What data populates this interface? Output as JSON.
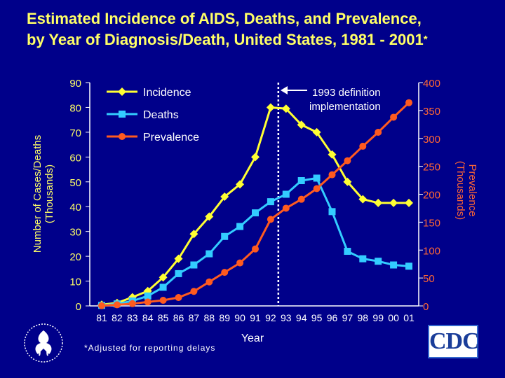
{
  "title": {
    "line1": "Estimated Incidence of AIDS, Deaths, and Prevalence,",
    "line2": "by Year of Diagnosis/Death, United States, 1981 - 2001",
    "asterisk": "*"
  },
  "footnote": "*Adjusted for reporting delays",
  "logos": {
    "cdc_text": "CDC",
    "hhs_icon": "hhs-eagle-icon"
  },
  "colors": {
    "background": "#00008a",
    "incidence": "#ffff33",
    "deaths": "#33ccff",
    "prevalence": "#ff5a1f",
    "left_axis": "#ffff66",
    "right_axis": "#ff6633"
  },
  "chart_data": {
    "type": "line",
    "title": "Estimated Incidence of AIDS, Deaths, and Prevalence, by Year of Diagnosis/Death, United States, 1981 - 2001",
    "xlabel": "Year",
    "ylabel_left": [
      "Number of Cases/Deaths",
      "(Thousands)"
    ],
    "ylabel_right": [
      "Prevalence",
      "(Thousands)"
    ],
    "categories": [
      "81",
      "82",
      "83",
      "84",
      "85",
      "86",
      "87",
      "88",
      "89",
      "90",
      "91",
      "92",
      "93",
      "94",
      "95",
      "96",
      "97",
      "98",
      "99",
      "00",
      "01"
    ],
    "ylim_left": [
      0,
      90
    ],
    "yticks_left": [
      0,
      10,
      20,
      30,
      40,
      50,
      60,
      70,
      80,
      90
    ],
    "ylim_right": [
      0,
      400
    ],
    "yticks_right": [
      0,
      50,
      100,
      150,
      200,
      250,
      300,
      350,
      400
    ],
    "legend_position": "top-left",
    "series": [
      {
        "name": "Incidence",
        "axis": "left",
        "marker": "diamond",
        "values": [
          0.5,
          1.2,
          3.5,
          6,
          11.5,
          19,
          29,
          36,
          44,
          49,
          60,
          80,
          79.5,
          73,
          70,
          61,
          50,
          43,
          41.5,
          41.5,
          41.5
        ]
      },
      {
        "name": "Deaths",
        "axis": "left",
        "marker": "square",
        "values": [
          0.2,
          0.8,
          2,
          4,
          7.5,
          13,
          16.5,
          21,
          28,
          32,
          37.5,
          42,
          45,
          50.5,
          51.5,
          38,
          22,
          19,
          18,
          16.5,
          16
        ]
      },
      {
        "name": "Prevalence",
        "axis": "right",
        "marker": "circle",
        "values": [
          0.5,
          2,
          4,
          7,
          10,
          15,
          26,
          43,
          60,
          77,
          102,
          155,
          175,
          191,
          210,
          235,
          260,
          286,
          311,
          338,
          364
        ]
      }
    ],
    "annotation": {
      "text_line1": "1993 definition",
      "text_line2": "implementation",
      "at_category": "93"
    }
  }
}
